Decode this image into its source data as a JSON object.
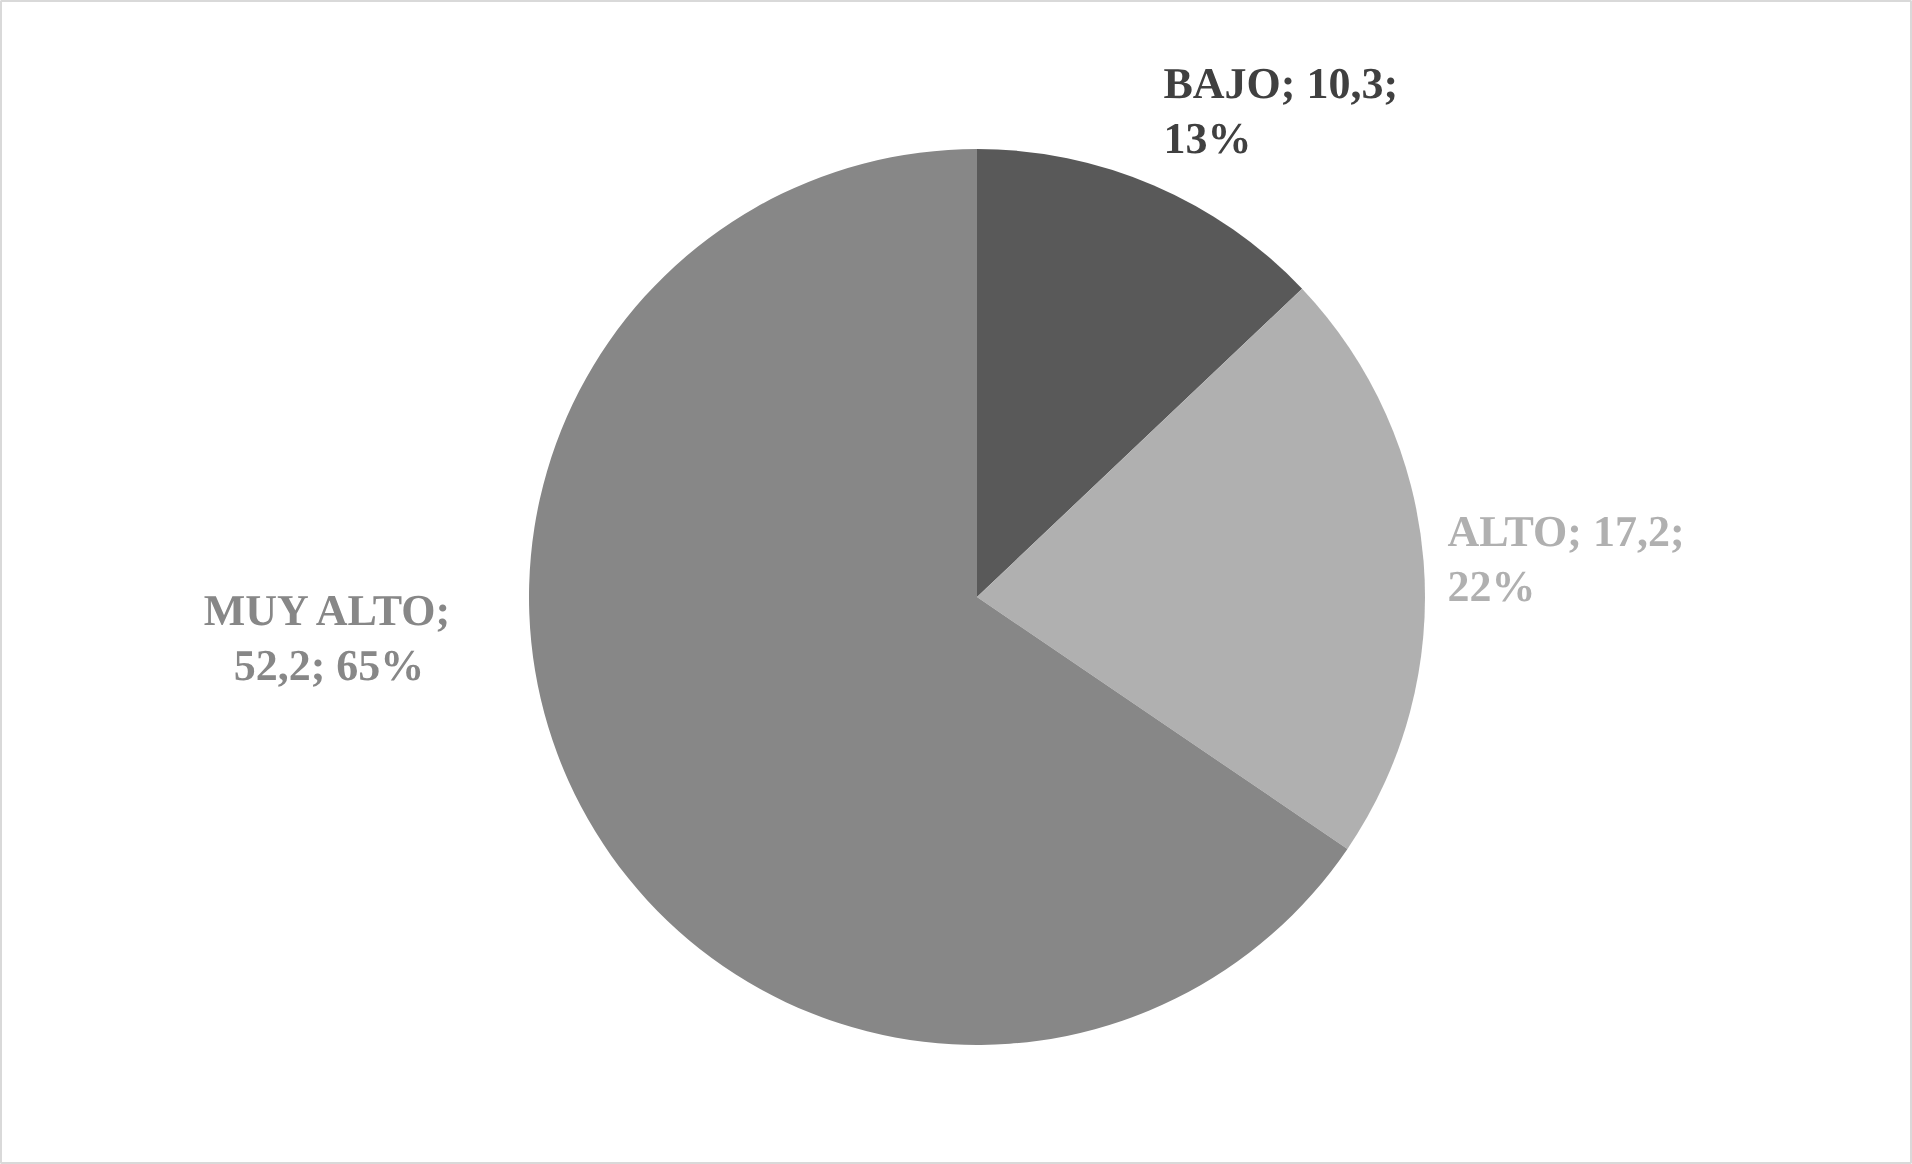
{
  "chart_data": {
    "type": "pie",
    "categories": [
      "BAJO",
      "ALTO",
      "MUY ALTO"
    ],
    "values": [
      10.3,
      17.2,
      52.2
    ],
    "colors": [
      "#595959",
      "#b0b0b0",
      "#878787"
    ],
    "value_labels": [
      "; 10,3; 13%",
      "; 17,2; 22%",
      "; 52,2; 65%"
    ]
  }
}
